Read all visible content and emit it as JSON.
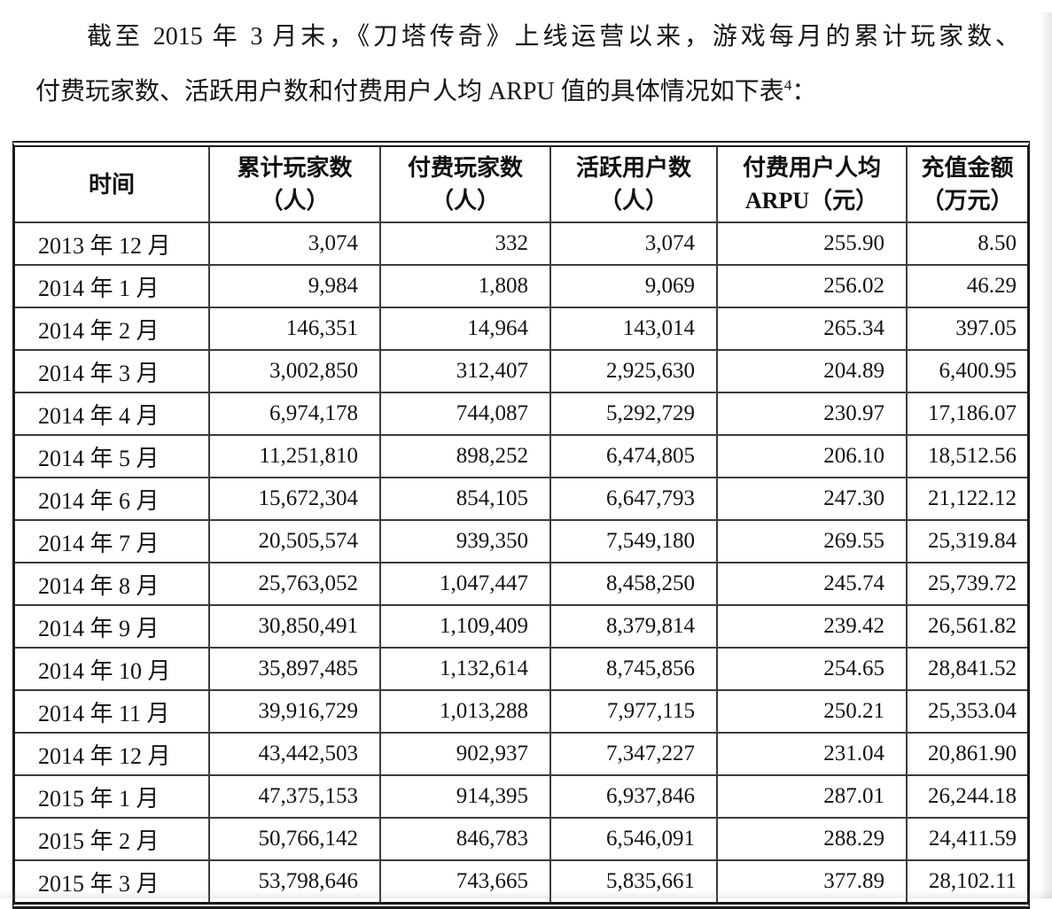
{
  "intro": {
    "line1": "截至 2015 年 3 月末，《刀塔传奇》上线运营以来，游戏每月的累计玩家数、",
    "line2_main": "付费玩家数、活跃用户数和付费用户人均 ARPU 值的具体情况如下表",
    "footnote_marker": "4",
    "line2_tail": "："
  },
  "table": {
    "columns": [
      {
        "label_line1": "时间",
        "label_line2": ""
      },
      {
        "label_line1": "累计玩家数",
        "label_line2": "（人）"
      },
      {
        "label_line1": "付费玩家数",
        "label_line2": "（人）"
      },
      {
        "label_line1": "活跃用户数",
        "label_line2": "（人）"
      },
      {
        "label_line1": "付费用户人均",
        "label_line2": "ARPU（元）"
      },
      {
        "label_line1": "充值金额",
        "label_line2": "（万元）"
      }
    ],
    "rows": [
      [
        "2013 年 12 月",
        "3,074",
        "332",
        "3,074",
        "255.90",
        "8.50"
      ],
      [
        "2014 年 1 月",
        "9,984",
        "1,808",
        "9,069",
        "256.02",
        "46.29"
      ],
      [
        "2014 年 2 月",
        "146,351",
        "14,964",
        "143,014",
        "265.34",
        "397.05"
      ],
      [
        "2014 年 3 月",
        "3,002,850",
        "312,407",
        "2,925,630",
        "204.89",
        "6,400.95"
      ],
      [
        "2014 年 4 月",
        "6,974,178",
        "744,087",
        "5,292,729",
        "230.97",
        "17,186.07"
      ],
      [
        "2014 年 5 月",
        "11,251,810",
        "898,252",
        "6,474,805",
        "206.10",
        "18,512.56"
      ],
      [
        "2014 年 6 月",
        "15,672,304",
        "854,105",
        "6,647,793",
        "247.30",
        "21,122.12"
      ],
      [
        "2014 年 7 月",
        "20,505,574",
        "939,350",
        "7,549,180",
        "269.55",
        "25,319.84"
      ],
      [
        "2014 年 8 月",
        "25,763,052",
        "1,047,447",
        "8,458,250",
        "245.74",
        "25,739.72"
      ],
      [
        "2014 年 9 月",
        "30,850,491",
        "1,109,409",
        "8,379,814",
        "239.42",
        "26,561.82"
      ],
      [
        "2014 年 10 月",
        "35,897,485",
        "1,132,614",
        "8,745,856",
        "254.65",
        "28,841.52"
      ],
      [
        "2014 年 11 月",
        "39,916,729",
        "1,013,288",
        "7,977,115",
        "250.21",
        "25,353.04"
      ],
      [
        "2014 年 12 月",
        "43,442,503",
        "902,937",
        "7,347,227",
        "231.04",
        "20,861.90"
      ],
      [
        "2015 年 1 月",
        "47,375,153",
        "914,395",
        "6,937,846",
        "287.01",
        "26,244.18"
      ],
      [
        "2015 年 2 月",
        "50,766,142",
        "846,783",
        "6,546,091",
        "288.29",
        "24,411.59"
      ],
      [
        "2015 年 3 月",
        "53,798,646",
        "743,665",
        "5,835,661",
        "377.89",
        "28,102.11"
      ]
    ]
  }
}
